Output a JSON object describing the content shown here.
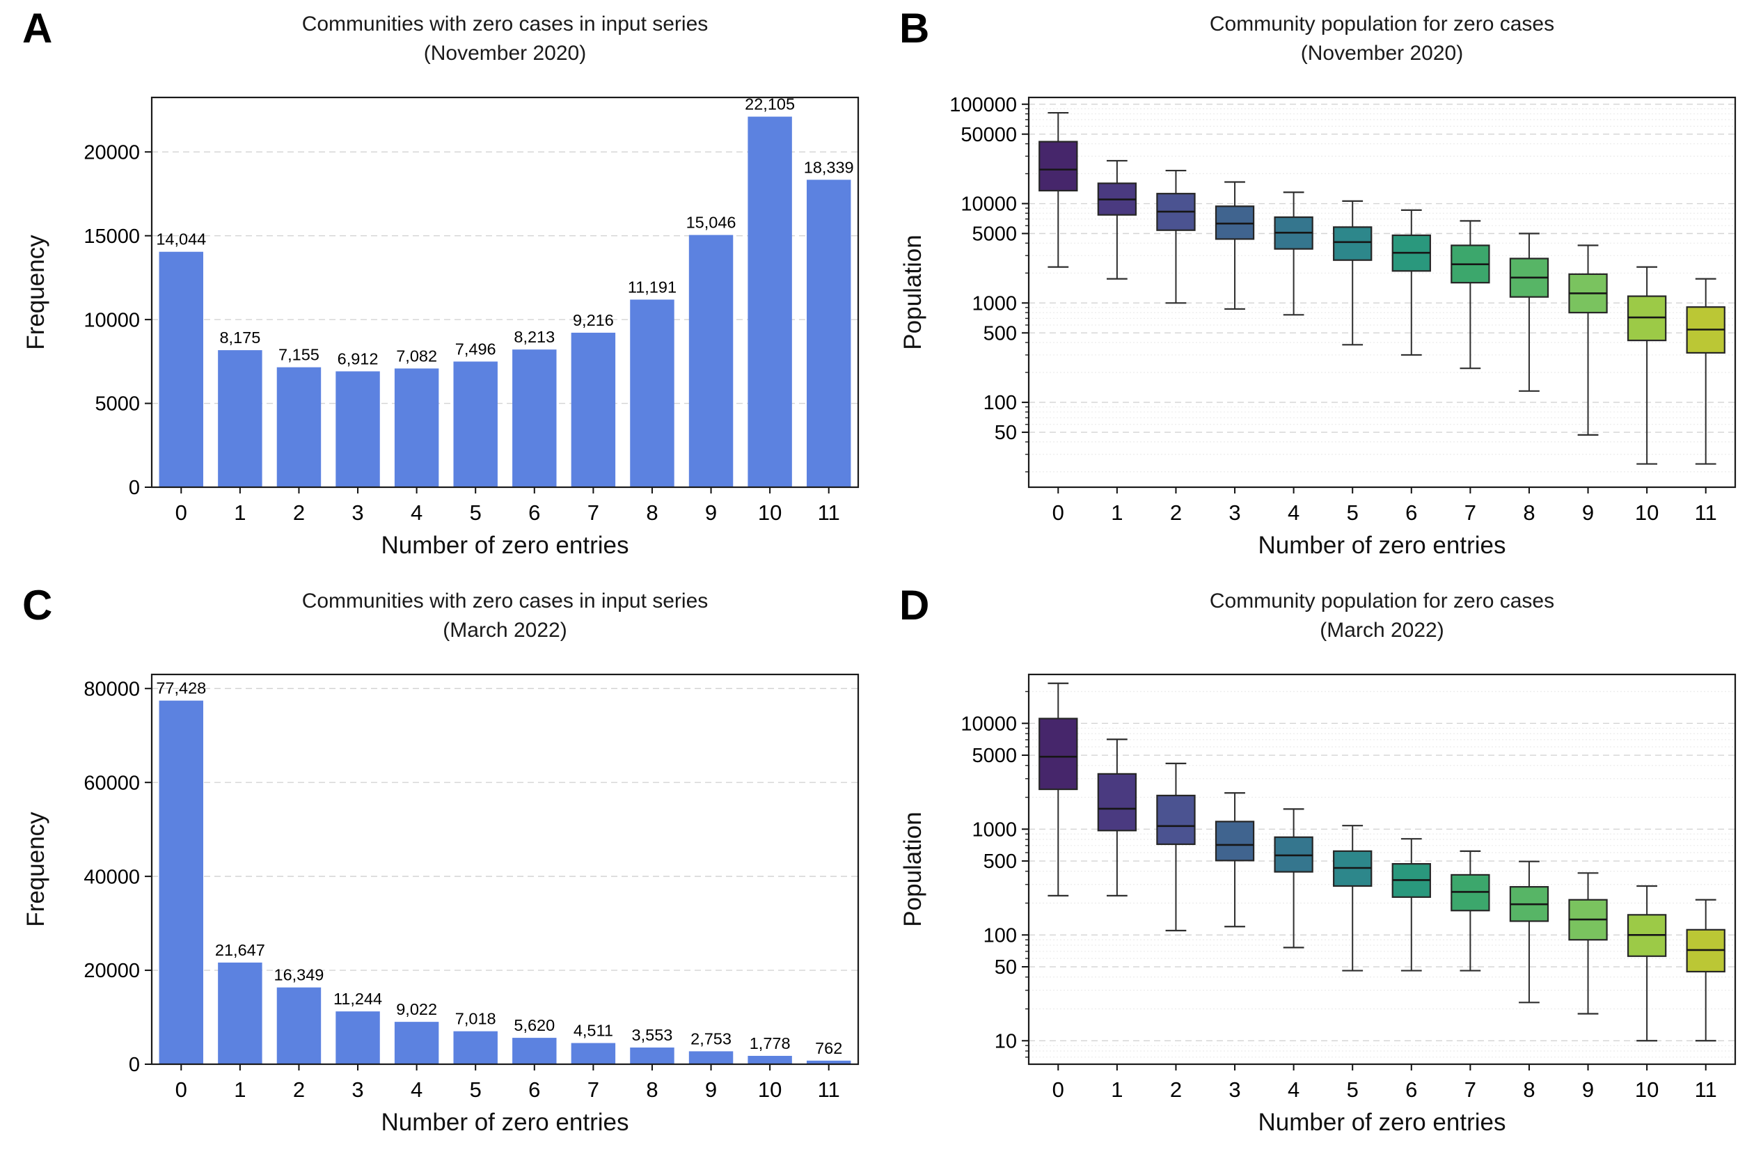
{
  "figure": {
    "background": "#ffffff",
    "bar_color": "#5c82e0",
    "box_palette": [
      "#46266b",
      "#4a3a80",
      "#4b5391",
      "#40648f",
      "#35768e",
      "#2d878b",
      "#2a987d",
      "#3ca76c",
      "#57b566",
      "#7ac35f",
      "#9cca47",
      "#bbc735"
    ]
  },
  "panels": [
    {
      "letter": "A",
      "title_line1": "Communities with zero cases in input series",
      "title_line2": "(November 2020)",
      "xlabel": "Number of zero entries",
      "ylabel": "Frequency"
    },
    {
      "letter": "B",
      "title_line1": "Community population for zero cases",
      "title_line2": "(November 2020)",
      "xlabel": "Number of zero entries",
      "ylabel": "Population"
    },
    {
      "letter": "C",
      "title_line1": "Communities with zero cases in input series",
      "title_line2": "(March 2022)",
      "xlabel": "Number of zero entries",
      "ylabel": "Frequency"
    },
    {
      "letter": "D",
      "title_line1": "Community population for zero cases",
      "title_line2": "(March 2022)",
      "xlabel": "Number of zero entries",
      "ylabel": "Population"
    }
  ],
  "chart_data": [
    {
      "type": "bar",
      "title": "Communities with zero cases in input series (November 2020)",
      "xlabel": "Number of zero entries",
      "ylabel": "Frequency",
      "categories": [
        "0",
        "1",
        "2",
        "3",
        "4",
        "5",
        "6",
        "7",
        "8",
        "9",
        "10",
        "11"
      ],
      "values": [
        14044,
        8175,
        7155,
        6912,
        7082,
        7496,
        8213,
        9216,
        11191,
        15046,
        22105,
        18339
      ],
      "value_labels": [
        "14,044",
        "8,175",
        "7,155",
        "6,912",
        "7,082",
        "7,496",
        "8,213",
        "9,216",
        "11,191",
        "15,046",
        "22,105",
        "18,339"
      ],
      "yticks": [
        0,
        5000,
        10000,
        15000,
        20000
      ],
      "ylim": [
        0,
        23250
      ],
      "log_scale": false,
      "grid": true,
      "legend": null,
      "bar_color": "#5c82e0"
    },
    {
      "type": "box",
      "title": "Community population for zero cases (November 2020)",
      "xlabel": "Number of zero entries",
      "ylabel": "Population",
      "categories": [
        "0",
        "1",
        "2",
        "3",
        "4",
        "5",
        "6",
        "7",
        "8",
        "9",
        "10",
        "11"
      ],
      "yticks": [
        100000,
        50000,
        10000,
        5000,
        1000,
        500,
        100,
        50
      ],
      "ylim": [
        14,
        117000
      ],
      "log_scale": true,
      "grid": true,
      "legend": null,
      "colors": [
        "#46266b",
        "#4a3a80",
        "#4b5391",
        "#40648f",
        "#35768e",
        "#2d878b",
        "#2a987d",
        "#3ca76c",
        "#57b566",
        "#7ac35f",
        "#9cca47",
        "#bbc735"
      ],
      "boxes_format": "[whisker_low, q1, median, q3, whisker_high]",
      "boxes": [
        [
          2300,
          13500,
          22000,
          42000,
          82000
        ],
        [
          1750,
          7700,
          11000,
          16000,
          27000
        ],
        [
          1000,
          5400,
          8300,
          12600,
          21500
        ],
        [
          870,
          4400,
          6300,
          9400,
          16500
        ],
        [
          760,
          3500,
          5100,
          7300,
          13000
        ],
        [
          380,
          2700,
          4100,
          5800,
          10600
        ],
        [
          300,
          2100,
          3200,
          4800,
          8600
        ],
        [
          220,
          1600,
          2450,
          3800,
          6700
        ],
        [
          130,
          1150,
          1800,
          2800,
          5000
        ],
        [
          47,
          800,
          1250,
          1950,
          3800
        ],
        [
          24,
          420,
          715,
          1170,
          2300
        ],
        [
          24,
          315,
          540,
          910,
          1750
        ]
      ]
    },
    {
      "type": "bar",
      "title": "Communities with zero cases in input series (March 2022)",
      "xlabel": "Number of zero entries",
      "ylabel": "Frequency",
      "categories": [
        "0",
        "1",
        "2",
        "3",
        "4",
        "5",
        "6",
        "7",
        "8",
        "9",
        "10",
        "11"
      ],
      "values": [
        77428,
        21647,
        16349,
        11244,
        9022,
        7018,
        5620,
        4511,
        3553,
        2753,
        1778,
        762
      ],
      "value_labels": [
        "77,428",
        "21,647",
        "16,349",
        "11,244",
        "9,022",
        "7,018",
        "5,620",
        "4,511",
        "3,553",
        "2,753",
        "1,778",
        "762"
      ],
      "yticks": [
        0,
        20000,
        40000,
        60000,
        80000
      ],
      "ylim": [
        0,
        83000
      ],
      "log_scale": false,
      "grid": true,
      "legend": null,
      "bar_color": "#5c82e0"
    },
    {
      "type": "box",
      "title": "Community population for zero cases (March 2022)",
      "xlabel": "Number of zero entries",
      "ylabel": "Population",
      "categories": [
        "0",
        "1",
        "2",
        "3",
        "4",
        "5",
        "6",
        "7",
        "8",
        "9",
        "10",
        "11"
      ],
      "yticks": [
        10000,
        5000,
        1000,
        500,
        100,
        50,
        10
      ],
      "ylim": [
        6,
        29000
      ],
      "log_scale": true,
      "grid": true,
      "legend": null,
      "colors": [
        "#46266b",
        "#4a3a80",
        "#4b5391",
        "#40648f",
        "#35768e",
        "#2d878b",
        "#2a987d",
        "#3ca76c",
        "#57b566",
        "#7ac35f",
        "#9cca47",
        "#bbc735"
      ],
      "boxes_format": "[whisker_low, q1, median, q3, whisker_high]",
      "boxes": [
        [
          235,
          2380,
          4840,
          11100,
          23900
        ],
        [
          235,
          970,
          1560,
          3330,
          7060
        ],
        [
          110,
          720,
          1070,
          2080,
          4180
        ],
        [
          120,
          505,
          710,
          1180,
          2200
        ],
        [
          76,
          395,
          565,
          840,
          1550
        ],
        [
          46,
          290,
          430,
          620,
          1080
        ],
        [
          46,
          228,
          330,
          470,
          810
        ],
        [
          46,
          170,
          255,
          370,
          620
        ],
        [
          23,
          135,
          195,
          285,
          495
        ],
        [
          18,
          90,
          140,
          215,
          385
        ],
        [
          10,
          63,
          100,
          155,
          290
        ],
        [
          10,
          45,
          72,
          112,
          215
        ]
      ]
    }
  ]
}
